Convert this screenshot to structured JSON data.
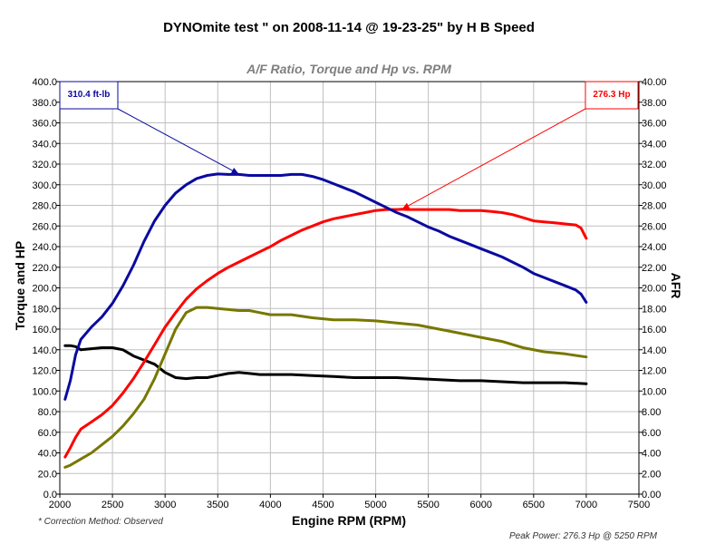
{
  "header": {
    "title": "DYNOmite test \" on 2008-11-14 @ 19-23-25\" by H B Speed"
  },
  "footer": {
    "correction_note": "* Correction Method: Observed",
    "peak_power": "Peak Power: 276.3 Hp @ 5250 RPM"
  },
  "colors": {
    "torque": "#0a0aa0",
    "hp": "#ff0000",
    "afr1": "#777700",
    "afr2": "#000000",
    "grid": "#c0c0c0"
  },
  "chart_data": {
    "type": "line",
    "title": "A/F Ratio, Torque and Hp vs. RPM",
    "xlabel": "Engine RPM (RPM)",
    "ylabel": "Torque and HP",
    "y2label": "AFR",
    "xlim": [
      2000,
      7500
    ],
    "ylim": [
      0,
      400
    ],
    "y2lim": [
      0,
      40
    ],
    "grid": true,
    "x_ticks": [
      "2000",
      "2500",
      "3000",
      "3500",
      "4000",
      "4500",
      "5000",
      "5500",
      "6000",
      "6500",
      "7000",
      "7500"
    ],
    "y_ticks": [
      "0.0",
      "20.0",
      "40.0",
      "60.0",
      "80.0",
      "100.0",
      "120.0",
      "140.0",
      "160.0",
      "180.0",
      "200.0",
      "220.0",
      "240.0",
      "260.0",
      "280.0",
      "300.0",
      "320.0",
      "340.0",
      "360.0",
      "380.0",
      "400.0"
    ],
    "y2_ticks": [
      "0.00",
      "2.00",
      "4.00",
      "6.00",
      "8.00",
      "10.00",
      "12.00",
      "14.00",
      "16.00",
      "18.00",
      "20.00",
      "22.00",
      "24.00",
      "26.00",
      "28.00",
      "30.00",
      "32.00",
      "34.00",
      "36.00",
      "38.00",
      "40.00"
    ],
    "series": [
      {
        "key": "torque",
        "axis": "left",
        "x": [
          2050,
          2100,
          2150,
          2200,
          2300,
          2400,
          2500,
          2600,
          2700,
          2800,
          2900,
          3000,
          3100,
          3200,
          3300,
          3400,
          3500,
          3600,
          3700,
          3800,
          3900,
          4000,
          4100,
          4200,
          4300,
          4400,
          4500,
          4600,
          4700,
          4800,
          4900,
          5000,
          5100,
          5200,
          5300,
          5400,
          5500,
          5600,
          5700,
          5800,
          5900,
          6000,
          6100,
          6200,
          6300,
          6400,
          6500,
          6600,
          6700,
          6800,
          6900,
          6950,
          7000
        ],
        "y": [
          92,
          110,
          135,
          150,
          162,
          172,
          185,
          202,
          222,
          245,
          265,
          280,
          292,
          300,
          306,
          309,
          310.4,
          310,
          310,
          309,
          309,
          309,
          309,
          310,
          310,
          308,
          305,
          301,
          297,
          293,
          288,
          283,
          278,
          273,
          269,
          264,
          259,
          255,
          250,
          246,
          242,
          238,
          234,
          230,
          225,
          220,
          214,
          210,
          206,
          202,
          198,
          194,
          186
        ]
      },
      {
        "key": "hp",
        "axis": "left",
        "x": [
          2050,
          2100,
          2150,
          2200,
          2300,
          2400,
          2500,
          2600,
          2700,
          2800,
          2900,
          3000,
          3100,
          3200,
          3300,
          3400,
          3500,
          3600,
          3700,
          3800,
          3900,
          4000,
          4100,
          4200,
          4300,
          4400,
          4500,
          4600,
          4700,
          4800,
          4900,
          5000,
          5100,
          5200,
          5250,
          5300,
          5400,
          5500,
          5600,
          5700,
          5800,
          5900,
          6000,
          6100,
          6200,
          6300,
          6400,
          6500,
          6600,
          6700,
          6800,
          6900,
          6950,
          7000
        ],
        "y": [
          36,
          45,
          55,
          63,
          70,
          77,
          86,
          98,
          112,
          128,
          145,
          162,
          176,
          189,
          199,
          207,
          214,
          220,
          225,
          230,
          235,
          240,
          246,
          251,
          256,
          260,
          264,
          267,
          269,
          271,
          273,
          275,
          276,
          276,
          276.3,
          276,
          276,
          276,
          276,
          276,
          275,
          275,
          275,
          274,
          273,
          271,
          268,
          265,
          264,
          263,
          262,
          261,
          258,
          248
        ]
      },
      {
        "key": "afr1",
        "axis": "right",
        "x": [
          2050,
          2100,
          2200,
          2300,
          2400,
          2500,
          2600,
          2700,
          2800,
          2900,
          3000,
          3100,
          3200,
          3300,
          3400,
          3500,
          3600,
          3700,
          3800,
          3900,
          4000,
          4200,
          4400,
          4600,
          4800,
          5000,
          5200,
          5400,
          5600,
          5800,
          6000,
          6200,
          6400,
          6600,
          6800,
          7000
        ],
        "y": [
          2.6,
          2.8,
          3.4,
          4.0,
          4.8,
          5.6,
          6.6,
          7.8,
          9.2,
          11.2,
          13.6,
          16.0,
          17.6,
          18.1,
          18.1,
          18.0,
          17.9,
          17.8,
          17.8,
          17.6,
          17.4,
          17.4,
          17.1,
          16.9,
          16.9,
          16.8,
          16.6,
          16.4,
          16.0,
          15.6,
          15.2,
          14.8,
          14.2,
          13.8,
          13.6,
          13.3
        ]
      },
      {
        "key": "afr2",
        "axis": "right",
        "x": [
          2050,
          2100,
          2150,
          2200,
          2300,
          2400,
          2500,
          2600,
          2700,
          2800,
          2900,
          3000,
          3100,
          3200,
          3300,
          3400,
          3500,
          3600,
          3700,
          3800,
          3900,
          4000,
          4200,
          4400,
          4600,
          4800,
          5000,
          5200,
          5400,
          5600,
          5800,
          6000,
          6200,
          6400,
          6600,
          6800,
          7000
        ],
        "y": [
          14.4,
          14.4,
          14.3,
          14.0,
          14.1,
          14.2,
          14.2,
          14.0,
          13.4,
          13.0,
          12.6,
          11.8,
          11.3,
          11.2,
          11.3,
          11.3,
          11.5,
          11.7,
          11.8,
          11.7,
          11.6,
          11.6,
          11.6,
          11.5,
          11.4,
          11.3,
          11.3,
          11.3,
          11.2,
          11.1,
          11.0,
          11.0,
          10.9,
          10.8,
          10.8,
          10.8,
          10.7
        ]
      }
    ],
    "annotations": [
      {
        "label": "310.4 ft-lb",
        "series": "torque",
        "x": 3700,
        "y": 310.4
      },
      {
        "label": "276.3 Hp",
        "series": "hp",
        "x": 5250,
        "y": 276.3
      }
    ]
  }
}
